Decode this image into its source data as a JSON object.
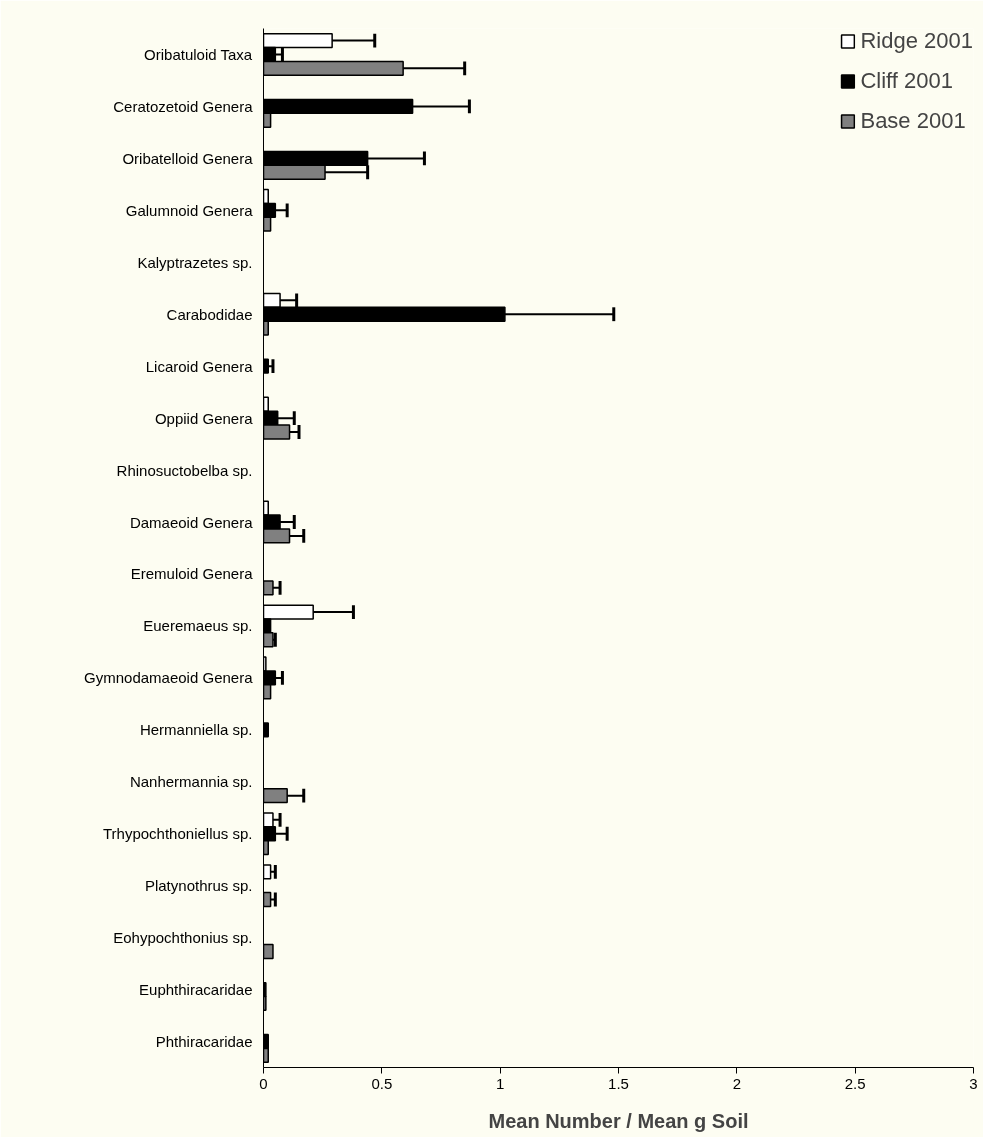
{
  "chart_data": {
    "type": "bar",
    "orientation": "horizontal",
    "xlabel": "Mean Number / Mean g Soil",
    "categories": [
      "Oribatuloid Taxa",
      "Ceratozetoid Genera",
      "Oribatelloid Genera",
      "Galumnoid Genera",
      "Kalyptrazetes sp.",
      "Carabodidae",
      "Licaroid Genera",
      "Oppiid Genera",
      "Rhinosuctobelba sp.",
      "Damaeoid Genera",
      "Eremuloid Genera",
      "Eueremaeus sp.",
      "Gymnodamaeoid Genera",
      "Hermanniella sp.",
      "Nanhermannia sp.",
      "Trhypochthoniellus sp.",
      "Platynothrus sp.",
      "Eohypochthonius sp.",
      "Euphthiracaridae",
      "Phthiracaridae"
    ],
    "series": [
      {
        "name": "Ridge 2001",
        "color": "#ffffff",
        "values": [
          0.29,
          0,
          0,
          0.02,
          0,
          0.07,
          0,
          0.02,
          0,
          0.02,
          0,
          0.21,
          0.01,
          0,
          0,
          0.04,
          0.03,
          0,
          0,
          0
        ],
        "errors": [
          [
            0.29,
            0.47
          ],
          null,
          null,
          null,
          null,
          [
            0.07,
            0.14
          ],
          null,
          null,
          null,
          null,
          null,
          [
            0.21,
            0.38
          ],
          null,
          null,
          null,
          [
            0.04,
            0.07
          ],
          [
            0.03,
            0.05
          ],
          null,
          null,
          null
        ]
      },
      {
        "name": "Cliff 2001",
        "color": "#000000",
        "values": [
          0.05,
          0.63,
          0.44,
          0.05,
          0,
          1.02,
          0.02,
          0.06,
          0,
          0.07,
          0,
          0.03,
          0.05,
          0.02,
          0,
          0.05,
          0,
          0,
          0.01,
          0.02
        ],
        "errors": [
          [
            0.05,
            0.08
          ],
          [
            0.63,
            0.87
          ],
          [
            0.44,
            0.68
          ],
          [
            0.05,
            0.1
          ],
          null,
          [
            1.02,
            1.48
          ],
          [
            0.02,
            0.04
          ],
          [
            0.06,
            0.13
          ],
          null,
          [
            0.07,
            0.13
          ],
          null,
          null,
          [
            0.05,
            0.08
          ],
          null,
          null,
          [
            0.05,
            0.1
          ],
          null,
          null,
          null,
          null
        ]
      },
      {
        "name": "Base 2001",
        "color": "#808080",
        "values": [
          0.59,
          0.03,
          0.26,
          0.03,
          0,
          0.02,
          0,
          0.11,
          0,
          0.11,
          0.04,
          0.04,
          0.03,
          0,
          0.1,
          0.02,
          0.03,
          0.04,
          0.01,
          0.02
        ],
        "errors": [
          [
            0.59,
            0.85
          ],
          null,
          [
            0.26,
            0.44
          ],
          null,
          null,
          null,
          null,
          [
            0.11,
            0.15
          ],
          null,
          [
            0.11,
            0.17
          ],
          [
            0.04,
            0.07
          ],
          [
            0.04,
            0.05
          ],
          null,
          null,
          [
            0.1,
            0.17
          ],
          null,
          [
            0.03,
            0.05
          ],
          null,
          null,
          null
        ]
      }
    ],
    "xlim": [
      0,
      3
    ],
    "xticks": [
      0,
      0.5,
      1,
      1.5,
      2,
      2.5,
      3
    ],
    "grid": false,
    "legend": "top right"
  }
}
